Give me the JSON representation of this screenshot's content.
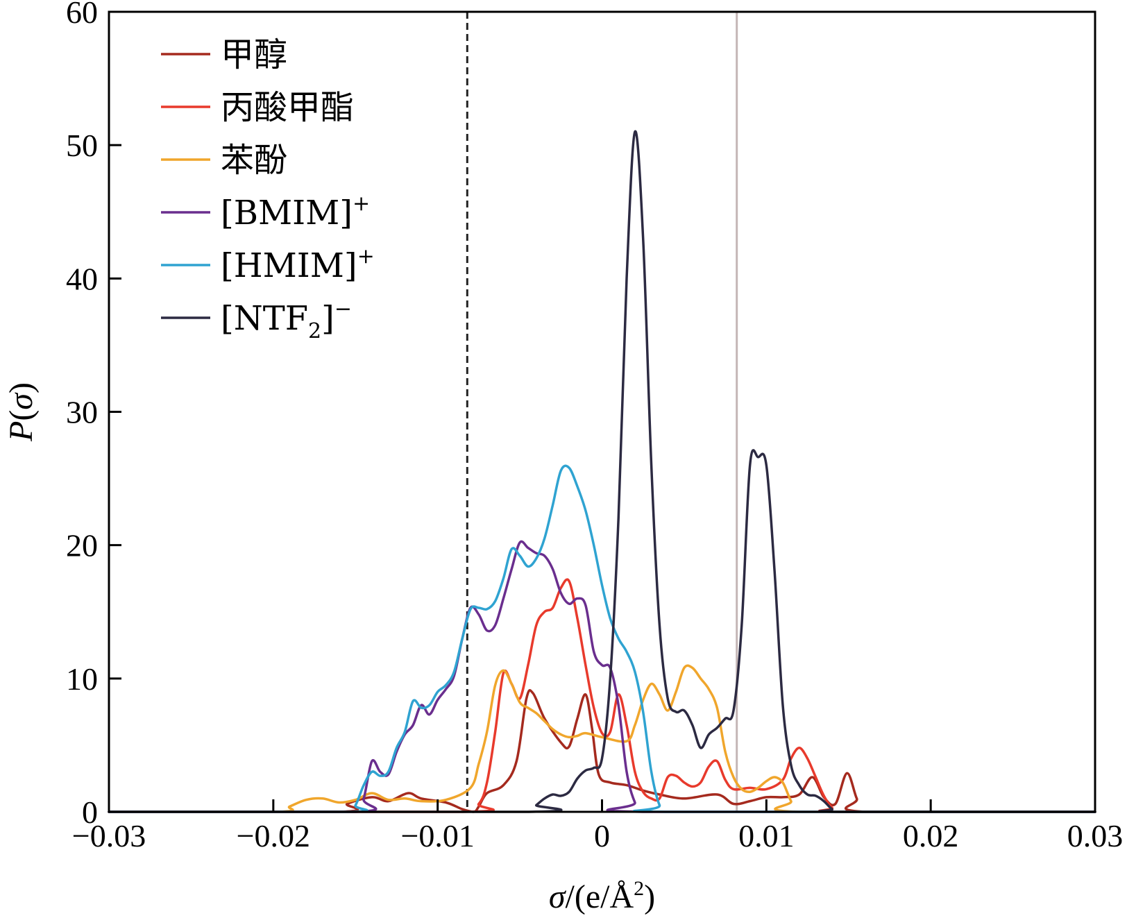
{
  "chart_data": {
    "type": "line",
    "title": "",
    "xlabel": "σ/(e/Å²)",
    "xlabel_parts": {
      "sigma": "σ",
      "unit": "/(e/Å",
      "sup": "2",
      "close": ")"
    },
    "ylabel": "P(σ)",
    "ylabel_parts": {
      "p": "P",
      "open": "(",
      "sigma": "σ",
      "close": ")"
    },
    "xlim": [
      -0.03,
      0.03
    ],
    "ylim": [
      0,
      60
    ],
    "xticks": [
      -0.03,
      -0.02,
      -0.01,
      0,
      0.01,
      0.02,
      0.03
    ],
    "xtick_labels": [
      "−0.03",
      "−0.02",
      "−0.01",
      "0",
      "0.01",
      "0.02",
      "0.03"
    ],
    "yticks": [
      0,
      10,
      20,
      30,
      40,
      50,
      60
    ],
    "ytick_labels": [
      "0",
      "10",
      "20",
      "30",
      "40",
      "50",
      "60"
    ],
    "grid": false,
    "legend_position": "top-left",
    "reference_lines": [
      {
        "name": "hb-donor-threshold",
        "x": -0.0082,
        "style": "dashed",
        "color": "#222222"
      },
      {
        "name": "hb-acceptor-threshold",
        "x": 0.0082,
        "style": "solid",
        "color": "#c4b6b6"
      }
    ],
    "series": [
      {
        "name": "甲醇",
        "legend_label": "甲醇",
        "color": "#a52a1e",
        "points": [
          [
            -0.03,
            0
          ],
          [
            -0.016,
            0
          ],
          [
            -0.0155,
            0.6
          ],
          [
            -0.014,
            1.1
          ],
          [
            -0.013,
            0.8
          ],
          [
            -0.0118,
            1.4
          ],
          [
            -0.011,
            1.0
          ],
          [
            -0.0095,
            0.7
          ],
          [
            -0.0085,
            0.2
          ],
          [
            -0.0078,
            0
          ],
          [
            -0.0075,
            0.4
          ],
          [
            -0.007,
            1.4
          ],
          [
            -0.006,
            2.0
          ],
          [
            -0.0052,
            3.8
          ],
          [
            -0.0046,
            8.5
          ],
          [
            -0.0042,
            8.9
          ],
          [
            -0.0035,
            7.0
          ],
          [
            -0.0025,
            5.2
          ],
          [
            -0.002,
            4.9
          ],
          [
            -0.0015,
            7.0
          ],
          [
            -0.001,
            8.8
          ],
          [
            -0.0006,
            6.2
          ],
          [
            -0.0002,
            2.8
          ],
          [
            0.0005,
            2.2
          ],
          [
            0.0015,
            2.0
          ],
          [
            0.0025,
            1.6
          ],
          [
            0.0035,
            1.3
          ],
          [
            0.005,
            1.0
          ],
          [
            0.007,
            1.3
          ],
          [
            0.008,
            0.6
          ],
          [
            0.009,
            0.8
          ],
          [
            0.01,
            1.1
          ],
          [
            0.011,
            1.1
          ],
          [
            0.012,
            1.3
          ],
          [
            0.0128,
            2.6
          ],
          [
            0.0135,
            1.1
          ],
          [
            0.0142,
            0.6
          ],
          [
            0.0149,
            2.9
          ],
          [
            0.0155,
            1.0
          ],
          [
            0.016,
            0
          ],
          [
            0.03,
            0
          ]
        ]
      },
      {
        "name": "丙酸甲酯",
        "legend_label": "丙酸甲酯",
        "color": "#e83a2c",
        "points": [
          [
            -0.03,
            0
          ],
          [
            -0.0085,
            0
          ],
          [
            -0.0075,
            0.6
          ],
          [
            -0.007,
            2.2
          ],
          [
            -0.0065,
            6.0
          ],
          [
            -0.006,
            10.4
          ],
          [
            -0.0055,
            9.6
          ],
          [
            -0.005,
            8.5
          ],
          [
            -0.0045,
            11.0
          ],
          [
            -0.004,
            14.0
          ],
          [
            -0.0035,
            15.0
          ],
          [
            -0.003,
            15.3
          ],
          [
            -0.0025,
            16.8
          ],
          [
            -0.002,
            17.3
          ],
          [
            -0.0015,
            14.5
          ],
          [
            -0.001,
            11.0
          ],
          [
            -0.0005,
            7.8
          ],
          [
            0,
            5.9
          ],
          [
            0.0005,
            6.0
          ],
          [
            0.001,
            8.8
          ],
          [
            0.0015,
            6.5
          ],
          [
            0.002,
            3.0
          ],
          [
            0.0025,
            1.5
          ],
          [
            0.003,
            1.0
          ],
          [
            0.0035,
            1.0
          ],
          [
            0.004,
            2.6
          ],
          [
            0.0045,
            2.7
          ],
          [
            0.005,
            2.2
          ],
          [
            0.0055,
            1.9
          ],
          [
            0.006,
            2.2
          ],
          [
            0.0065,
            3.4
          ],
          [
            0.007,
            3.8
          ],
          [
            0.0075,
            2.4
          ],
          [
            0.008,
            1.7
          ],
          [
            0.009,
            1.8
          ],
          [
            0.01,
            1.7
          ],
          [
            0.011,
            2.4
          ],
          [
            0.0115,
            4.0
          ],
          [
            0.012,
            4.8
          ],
          [
            0.0125,
            4.0
          ],
          [
            0.013,
            2.6
          ],
          [
            0.0135,
            1.2
          ],
          [
            0.014,
            0.3
          ],
          [
            0.0145,
            0
          ],
          [
            0.03,
            0
          ]
        ]
      },
      {
        "name": "苯酚",
        "legend_label": "苯酚",
        "color": "#f0a62c",
        "points": [
          [
            -0.03,
            0
          ],
          [
            -0.0198,
            0
          ],
          [
            -0.019,
            0.4
          ],
          [
            -0.018,
            0.9
          ],
          [
            -0.017,
            1.0
          ],
          [
            -0.016,
            0.7
          ],
          [
            -0.015,
            0.9
          ],
          [
            -0.014,
            1.4
          ],
          [
            -0.013,
            0.9
          ],
          [
            -0.012,
            1.0
          ],
          [
            -0.011,
            0.8
          ],
          [
            -0.0095,
            0.9
          ],
          [
            -0.008,
            1.8
          ],
          [
            -0.0075,
            3.6
          ],
          [
            -0.007,
            6.0
          ],
          [
            -0.0065,
            9.5
          ],
          [
            -0.006,
            10.6
          ],
          [
            -0.0055,
            9.6
          ],
          [
            -0.005,
            8.2
          ],
          [
            -0.0045,
            7.8
          ],
          [
            -0.004,
            7.4
          ],
          [
            -0.0035,
            6.8
          ],
          [
            -0.003,
            6.2
          ],
          [
            -0.0025,
            5.8
          ],
          [
            -0.002,
            5.6
          ],
          [
            -0.0015,
            5.7
          ],
          [
            -0.001,
            5.9
          ],
          [
            0,
            5.6
          ],
          [
            0.0015,
            5.3
          ],
          [
            0.002,
            6.5
          ],
          [
            0.0025,
            8.4
          ],
          [
            0.003,
            9.6
          ],
          [
            0.0035,
            8.8
          ],
          [
            0.004,
            7.6
          ],
          [
            0.0045,
            9.0
          ],
          [
            0.005,
            10.8
          ],
          [
            0.0055,
            10.8
          ],
          [
            0.006,
            10.0
          ],
          [
            0.0065,
            9.2
          ],
          [
            0.007,
            7.8
          ],
          [
            0.0075,
            4.5
          ],
          [
            0.008,
            2.6
          ],
          [
            0.0085,
            1.7
          ],
          [
            0.009,
            1.5
          ],
          [
            0.0095,
            1.8
          ],
          [
            0.01,
            2.3
          ],
          [
            0.0105,
            2.6
          ],
          [
            0.011,
            2.2
          ],
          [
            0.0115,
            0.8
          ],
          [
            0.012,
            0
          ],
          [
            0.03,
            0
          ]
        ]
      },
      {
        "name": "[BMIM]+",
        "legend_label": "[BMIM]",
        "legend_sup": "+",
        "color": "#6a2e8e",
        "points": [
          [
            -0.03,
            0
          ],
          [
            -0.015,
            0
          ],
          [
            -0.0145,
            1.0
          ],
          [
            -0.014,
            3.8
          ],
          [
            -0.0135,
            3.0
          ],
          [
            -0.013,
            2.8
          ],
          [
            -0.0125,
            4.5
          ],
          [
            -0.012,
            5.8
          ],
          [
            -0.0115,
            6.5
          ],
          [
            -0.011,
            8.0
          ],
          [
            -0.0105,
            7.3
          ],
          [
            -0.01,
            8.4
          ],
          [
            -0.0095,
            9.2
          ],
          [
            -0.009,
            10.2
          ],
          [
            -0.0085,
            13.0
          ],
          [
            -0.008,
            15.3
          ],
          [
            -0.0075,
            14.8
          ],
          [
            -0.007,
            13.6
          ],
          [
            -0.0065,
            14.0
          ],
          [
            -0.006,
            16.0
          ],
          [
            -0.0055,
            18.2
          ],
          [
            -0.005,
            20.2
          ],
          [
            -0.0045,
            19.8
          ],
          [
            -0.004,
            19.4
          ],
          [
            -0.0035,
            19.2
          ],
          [
            -0.003,
            18.2
          ],
          [
            -0.0025,
            16.4
          ],
          [
            -0.002,
            15.6
          ],
          [
            -0.0015,
            16.0
          ],
          [
            -0.001,
            15.5
          ],
          [
            -0.0005,
            12.0
          ],
          [
            0,
            11.0
          ],
          [
            0.0005,
            10.8
          ],
          [
            0.001,
            8.0
          ],
          [
            0.0015,
            3.0
          ],
          [
            0.002,
            0.7
          ],
          [
            0.0025,
            0
          ],
          [
            0.03,
            0
          ]
        ]
      },
      {
        "name": "[HMIM]+",
        "legend_label": "[HMIM]",
        "legend_sup": "+",
        "color": "#2fa3d1",
        "points": [
          [
            -0.03,
            0
          ],
          [
            -0.0155,
            0
          ],
          [
            -0.015,
            0.5
          ],
          [
            -0.0145,
            2.0
          ],
          [
            -0.014,
            3.0
          ],
          [
            -0.0135,
            2.7
          ],
          [
            -0.013,
            3.0
          ],
          [
            -0.0125,
            4.8
          ],
          [
            -0.012,
            6.0
          ],
          [
            -0.0115,
            8.3
          ],
          [
            -0.011,
            7.8
          ],
          [
            -0.0105,
            8.0
          ],
          [
            -0.01,
            9.0
          ],
          [
            -0.0095,
            9.5
          ],
          [
            -0.009,
            10.5
          ],
          [
            -0.0085,
            13.0
          ],
          [
            -0.008,
            15.2
          ],
          [
            -0.0075,
            15.3
          ],
          [
            -0.007,
            15.2
          ],
          [
            -0.0065,
            15.8
          ],
          [
            -0.006,
            17.5
          ],
          [
            -0.0055,
            19.7
          ],
          [
            -0.005,
            19.2
          ],
          [
            -0.0045,
            18.4
          ],
          [
            -0.004,
            19.0
          ],
          [
            -0.0035,
            20.5
          ],
          [
            -0.003,
            23.0
          ],
          [
            -0.0025,
            25.6
          ],
          [
            -0.002,
            25.8
          ],
          [
            -0.0015,
            24.4
          ],
          [
            -0.001,
            22.6
          ],
          [
            -0.0005,
            20.0
          ],
          [
            0,
            17.0
          ],
          [
            0.0005,
            14.5
          ],
          [
            0.001,
            13.0
          ],
          [
            0.0015,
            12.0
          ],
          [
            0.002,
            10.5
          ],
          [
            0.0025,
            7.5
          ],
          [
            0.003,
            3.0
          ],
          [
            0.0035,
            0.5
          ],
          [
            0.004,
            0
          ],
          [
            0.03,
            0
          ]
        ]
      },
      {
        "name": "[NTF2]-",
        "legend_label": "[NTF",
        "legend_sub": "2",
        "legend_close": "]",
        "legend_sup": "−",
        "color": "#2c2a42",
        "points": [
          [
            -0.03,
            0
          ],
          [
            -0.0045,
            0
          ],
          [
            -0.004,
            0.5
          ],
          [
            -0.0035,
            1.0
          ],
          [
            -0.003,
            1.3
          ],
          [
            -0.0025,
            1.2
          ],
          [
            -0.002,
            1.5
          ],
          [
            -0.0015,
            2.5
          ],
          [
            -0.001,
            3.1
          ],
          [
            -0.0005,
            3.3
          ],
          [
            0,
            4.0
          ],
          [
            0.0005,
            10.0
          ],
          [
            0.001,
            22.0
          ],
          [
            0.0015,
            40.0
          ],
          [
            0.002,
            51.0
          ],
          [
            0.0025,
            43.0
          ],
          [
            0.003,
            26.0
          ],
          [
            0.0035,
            14.0
          ],
          [
            0.004,
            8.5
          ],
          [
            0.0045,
            7.5
          ],
          [
            0.005,
            7.6
          ],
          [
            0.0055,
            6.5
          ],
          [
            0.006,
            4.8
          ],
          [
            0.0065,
            5.8
          ],
          [
            0.007,
            6.3
          ],
          [
            0.0075,
            7.0
          ],
          [
            0.008,
            7.6
          ],
          [
            0.0085,
            14.0
          ],
          [
            0.009,
            26.0
          ],
          [
            0.0095,
            26.6
          ],
          [
            0.01,
            26.0
          ],
          [
            0.0105,
            18.0
          ],
          [
            0.011,
            8.0
          ],
          [
            0.0115,
            3.5
          ],
          [
            0.012,
            2.0
          ],
          [
            0.0125,
            1.3
          ],
          [
            0.013,
            1.2
          ],
          [
            0.0135,
            0.8
          ],
          [
            0.014,
            0.2
          ],
          [
            0.0145,
            0
          ],
          [
            0.03,
            0
          ]
        ]
      }
    ]
  }
}
